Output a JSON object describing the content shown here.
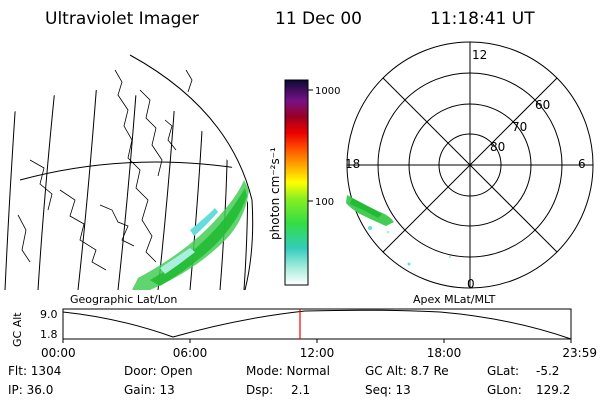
{
  "header": {
    "title": "Ultraviolet Imager",
    "date": "11 Dec 00",
    "time": "11:18:41 UT"
  },
  "colorbar": {
    "label": "photon cm⁻²s⁻¹",
    "tick_high": "1000",
    "tick_mid": "100"
  },
  "polar": {
    "mlt_top": "12",
    "mlt_left": "18",
    "mlt_right": "6",
    "mlt_bottom": "0",
    "lat_60": "60",
    "lat_70": "70",
    "lat_80": "80"
  },
  "captions": {
    "geographic": "Geographic Lat/Lon",
    "apex": "Apex MLat/MLT"
  },
  "altitude_plot": {
    "ylabel": "GC Alt",
    "ytick_high": "9.0",
    "ytick_low": "1.8",
    "xticks": [
      "00:00",
      "06:00",
      "12:00",
      "18:00",
      "23:59"
    ]
  },
  "info": {
    "flt": "Flt: 1304",
    "ip": "IP: 36.0",
    "door": "Door: Open",
    "gain": "Gain: 13",
    "mode": "Mode: Normal",
    "dsp_label": "Dsp:",
    "dsp_value": "2.1",
    "gcalt": "GC Alt: 8.7 Re",
    "seq": "Seq: 13",
    "glat_label": "GLat:",
    "glat_value": "-5.2",
    "glon_label": "GLon:",
    "glon_value": "129.2"
  },
  "colors": {
    "ink": "#000000",
    "marker": "#ff0000",
    "aurora_green": "#33cc33",
    "aurora_cyan": "#66dddd"
  }
}
